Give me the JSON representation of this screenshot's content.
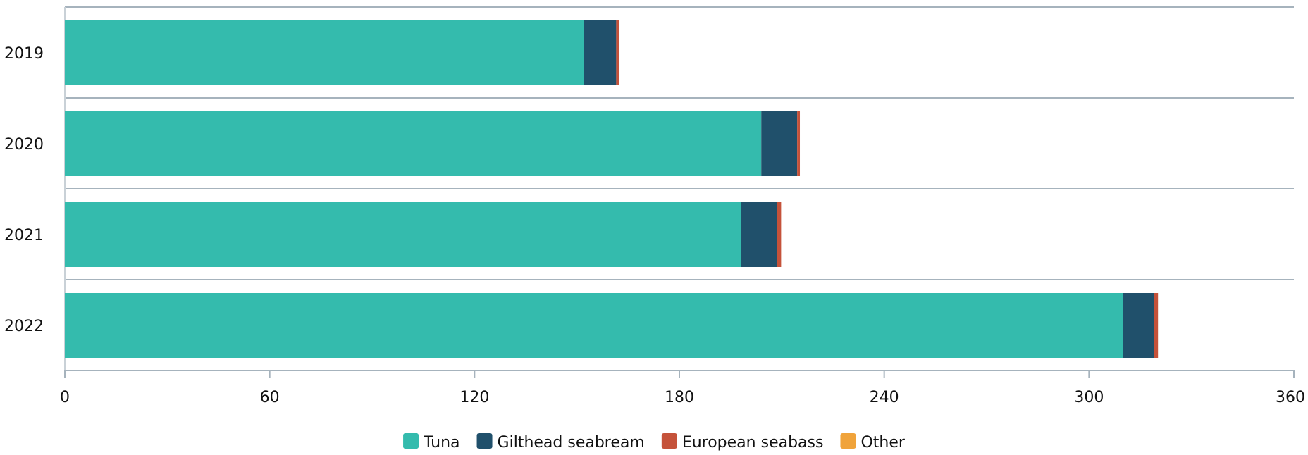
{
  "chart_data": {
    "type": "bar",
    "orientation": "horizontal",
    "stacked": true,
    "categories": [
      "2019",
      "2020",
      "2021",
      "2022"
    ],
    "series": [
      {
        "name": "Tuna",
        "color": "#34bbad",
        "values": [
          152,
          204,
          198,
          310
        ]
      },
      {
        "name": "Gilthead seabream",
        "color": "#20506b",
        "values": [
          9.5,
          10.5,
          10.5,
          9
        ]
      },
      {
        "name": "European seabass",
        "color": "#c5523a",
        "values": [
          0.8,
          0.8,
          1.3,
          1.2
        ]
      },
      {
        "name": "Other",
        "color": "#f0a33a",
        "values": [
          0,
          0,
          0,
          0
        ]
      }
    ],
    "xlim": [
      0,
      360
    ],
    "xticks": [
      "0",
      "60",
      "120",
      "180",
      "240",
      "300",
      "360"
    ],
    "grid": "horizontal band separators",
    "legend_position": "bottom-center"
  }
}
